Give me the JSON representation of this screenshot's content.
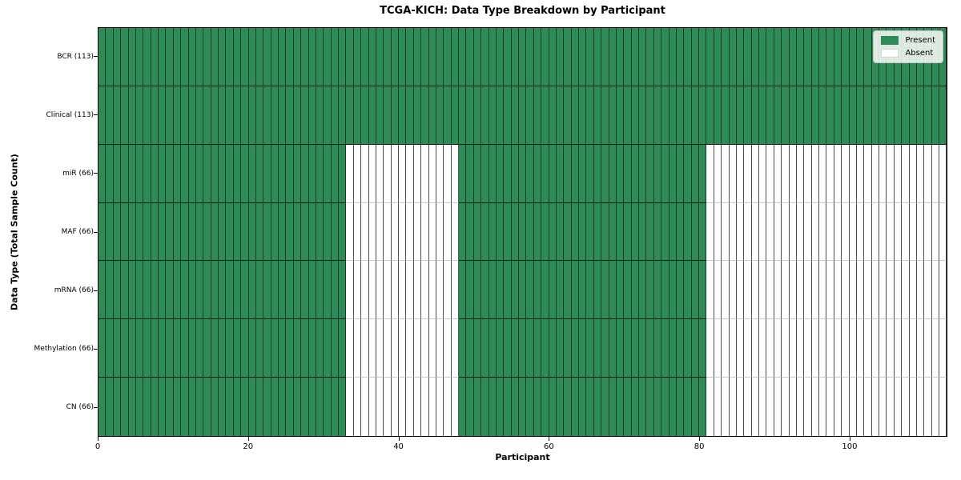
{
  "chart_data": {
    "type": "heatmap",
    "title": "TCGA-KICH: Data Type Breakdown by Participant",
    "xlabel": "Participant",
    "ylabel": "Data Type (Total Sample Count)",
    "x_max": 113,
    "x_ticks": [
      0,
      20,
      40,
      60,
      80,
      100
    ],
    "grid": false,
    "legend_position": "upper right",
    "colors": {
      "present": "#2e8b57",
      "absent": "#ffffff"
    },
    "legend": [
      {
        "label": "Present",
        "state": "present"
      },
      {
        "label": "Absent",
        "state": "absent"
      }
    ],
    "rows": [
      {
        "label": "BCR (113)",
        "total": 113,
        "segments": [
          {
            "start": 0,
            "end": 113,
            "state": "present"
          }
        ]
      },
      {
        "label": "Clinical (113)",
        "total": 113,
        "segments": [
          {
            "start": 0,
            "end": 113,
            "state": "present"
          }
        ]
      },
      {
        "label": "miR (66)",
        "total": 66,
        "segments": [
          {
            "start": 0,
            "end": 33,
            "state": "present"
          },
          {
            "start": 33,
            "end": 48,
            "state": "absent"
          },
          {
            "start": 48,
            "end": 81,
            "state": "present"
          },
          {
            "start": 81,
            "end": 113,
            "state": "absent"
          }
        ]
      },
      {
        "label": "MAF (66)",
        "total": 66,
        "segments": [
          {
            "start": 0,
            "end": 33,
            "state": "present"
          },
          {
            "start": 33,
            "end": 48,
            "state": "absent"
          },
          {
            "start": 48,
            "end": 81,
            "state": "present"
          },
          {
            "start": 81,
            "end": 113,
            "state": "absent"
          }
        ]
      },
      {
        "label": "mRNA (66)",
        "total": 66,
        "segments": [
          {
            "start": 0,
            "end": 33,
            "state": "present"
          },
          {
            "start": 33,
            "end": 48,
            "state": "absent"
          },
          {
            "start": 48,
            "end": 81,
            "state": "present"
          },
          {
            "start": 81,
            "end": 113,
            "state": "absent"
          }
        ]
      },
      {
        "label": "Methylation (66)",
        "total": 66,
        "segments": [
          {
            "start": 0,
            "end": 33,
            "state": "present"
          },
          {
            "start": 33,
            "end": 48,
            "state": "absent"
          },
          {
            "start": 48,
            "end": 81,
            "state": "present"
          },
          {
            "start": 81,
            "end": 113,
            "state": "absent"
          }
        ]
      },
      {
        "label": "CN (66)",
        "total": 66,
        "segments": [
          {
            "start": 0,
            "end": 33,
            "state": "present"
          },
          {
            "start": 33,
            "end": 48,
            "state": "absent"
          },
          {
            "start": 48,
            "end": 81,
            "state": "present"
          },
          {
            "start": 81,
            "end": 113,
            "state": "absent"
          }
        ]
      }
    ]
  }
}
